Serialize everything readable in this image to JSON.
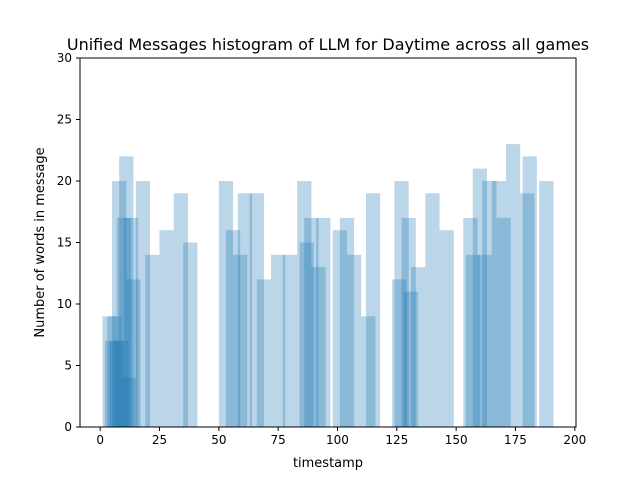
{
  "chart_data": {
    "type": "bar",
    "title": "Unified Messages histogram of LLM for Daytime across all games",
    "xlabel": "timestamp",
    "ylabel": "Number of words in message",
    "xlim": [
      -8.5,
      200.5
    ],
    "ylim": [
      0,
      30
    ],
    "xticks": [
      0,
      25,
      50,
      75,
      100,
      125,
      150,
      175,
      200
    ],
    "yticks": [
      0,
      5,
      10,
      15,
      20,
      25,
      30
    ],
    "bar_color": "#1f77b4",
    "bar_opacity": 0.3,
    "bar_width": 6,
    "grid": false,
    "legend": "none",
    "bars": [
      {
        "x": 4,
        "y": 9
      },
      {
        "x": 5,
        "y": 7
      },
      {
        "x": 6,
        "y": 9
      },
      {
        "x": 7,
        "y": 7
      },
      {
        "x": 8,
        "y": 20
      },
      {
        "x": 9,
        "y": 7
      },
      {
        "x": 10,
        "y": 17
      },
      {
        "x": 11,
        "y": 22
      },
      {
        "x": 12,
        "y": 4
      },
      {
        "x": 13,
        "y": 17
      },
      {
        "x": 14,
        "y": 12
      },
      {
        "x": 18,
        "y": 20
      },
      {
        "x": 22,
        "y": 14
      },
      {
        "x": 28,
        "y": 16
      },
      {
        "x": 34,
        "y": 19
      },
      {
        "x": 38,
        "y": 15
      },
      {
        "x": 53,
        "y": 20
      },
      {
        "x": 56,
        "y": 16
      },
      {
        "x": 59,
        "y": 14
      },
      {
        "x": 61,
        "y": 19
      },
      {
        "x": 66,
        "y": 19
      },
      {
        "x": 69,
        "y": 12
      },
      {
        "x": 75,
        "y": 14
      },
      {
        "x": 80,
        "y": 14
      },
      {
        "x": 86,
        "y": 20
      },
      {
        "x": 87,
        "y": 15
      },
      {
        "x": 89,
        "y": 17
      },
      {
        "x": 92,
        "y": 13
      },
      {
        "x": 94,
        "y": 17
      },
      {
        "x": 101,
        "y": 16
      },
      {
        "x": 104,
        "y": 17
      },
      {
        "x": 107,
        "y": 14
      },
      {
        "x": 113,
        "y": 9
      },
      {
        "x": 115,
        "y": 19
      },
      {
        "x": 126,
        "y": 12
      },
      {
        "x": 127,
        "y": 20
      },
      {
        "x": 130,
        "y": 17
      },
      {
        "x": 131,
        "y": 11
      },
      {
        "x": 134,
        "y": 13
      },
      {
        "x": 140,
        "y": 19
      },
      {
        "x": 146,
        "y": 16
      },
      {
        "x": 156,
        "y": 17
      },
      {
        "x": 157,
        "y": 14
      },
      {
        "x": 160,
        "y": 21
      },
      {
        "x": 162,
        "y": 14
      },
      {
        "x": 164,
        "y": 20
      },
      {
        "x": 168,
        "y": 20
      },
      {
        "x": 170,
        "y": 17
      },
      {
        "x": 174,
        "y": 23
      },
      {
        "x": 180,
        "y": 19
      },
      {
        "x": 181,
        "y": 22
      },
      {
        "x": 188,
        "y": 20
      }
    ]
  }
}
